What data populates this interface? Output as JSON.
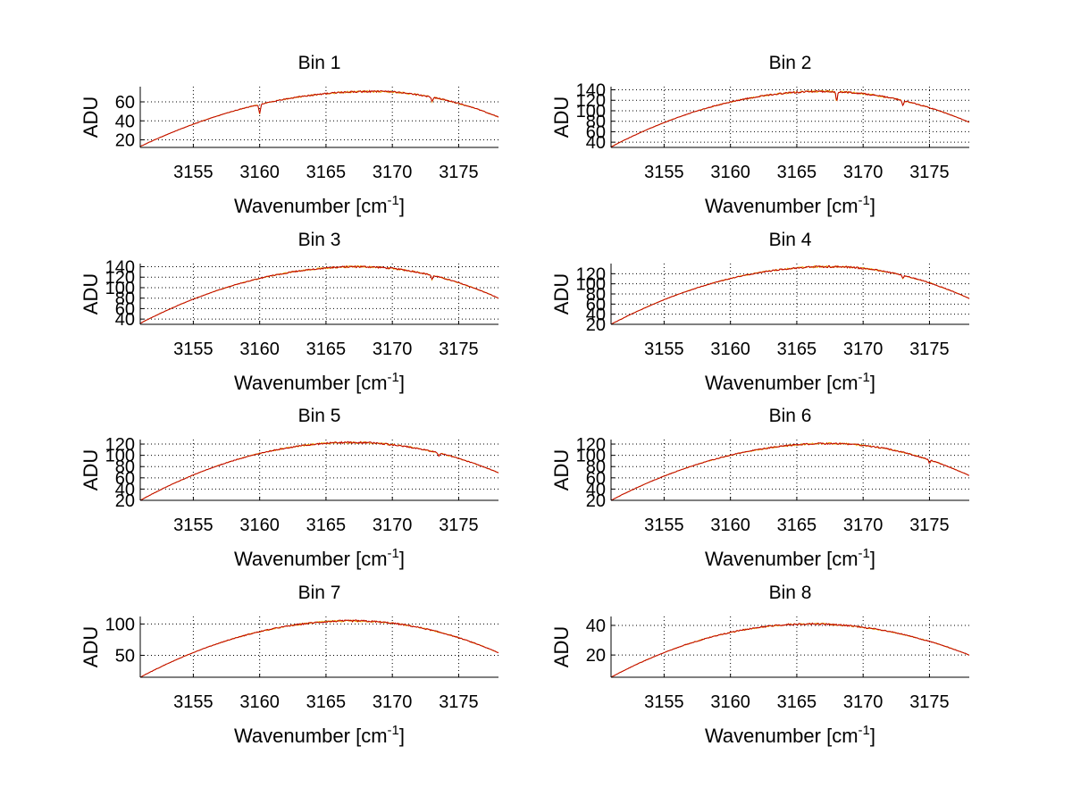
{
  "chart_data": [
    {
      "type": "line",
      "title": "Bin 1",
      "xlabel": "Wavenumber [cm",
      "xlabel_sup": "-1",
      "xlabel_end": "]",
      "ylabel": "ADU",
      "xlim": [
        3151,
        3178
      ],
      "ylim": [
        12,
        76
      ],
      "xticks": [
        3155,
        3160,
        3165,
        3170,
        3175
      ],
      "yticks": [
        20,
        40,
        60
      ],
      "grid": true,
      "peak": {
        "x": 3168.5,
        "y": 71
      },
      "endpoints": {
        "start": 13,
        "end": 44
      },
      "dips": [
        {
          "x": 3160,
          "depth": 10
        },
        {
          "x": 3173,
          "depth": 5
        }
      ],
      "series": [
        {
          "color": "#c00000"
        },
        {
          "color": "#e8b000"
        }
      ]
    },
    {
      "type": "line",
      "title": "Bin 2",
      "xlabel": "Wavenumber [cm",
      "xlabel_sup": "-1",
      "xlabel_end": "]",
      "ylabel": "ADU",
      "xlim": [
        3151,
        3178
      ],
      "ylim": [
        30,
        146
      ],
      "xticks": [
        3155,
        3160,
        3165,
        3170,
        3175
      ],
      "yticks": [
        40,
        60,
        80,
        100,
        120,
        140
      ],
      "grid": true,
      "peak": {
        "x": 3167,
        "y": 137
      },
      "endpoints": {
        "start": 31,
        "end": 78
      },
      "dips": [
        {
          "x": 3168,
          "depth": 18
        },
        {
          "x": 3173,
          "depth": 10
        }
      ],
      "series": [
        {
          "color": "#c00000"
        },
        {
          "color": "#e8b000"
        }
      ]
    },
    {
      "type": "line",
      "title": "Bin 3",
      "xlabel": "Wavenumber [cm",
      "xlabel_sup": "-1",
      "xlabel_end": "]",
      "ylabel": "ADU",
      "xlim": [
        3151,
        3178
      ],
      "ylim": [
        30,
        146
      ],
      "xticks": [
        3155,
        3160,
        3165,
        3170,
        3175
      ],
      "yticks": [
        40,
        60,
        80,
        100,
        120,
        140
      ],
      "grid": true,
      "peak": {
        "x": 3167.5,
        "y": 140
      },
      "endpoints": {
        "start": 32,
        "end": 80
      },
      "dips": [
        {
          "x": 3173,
          "depth": 8
        }
      ],
      "series": [
        {
          "color": "#c00000"
        },
        {
          "color": "#e8b000"
        }
      ]
    },
    {
      "type": "line",
      "title": "Bin 4",
      "xlabel": "Wavenumber [cm",
      "xlabel_sup": "-1",
      "xlabel_end": "]",
      "ylabel": "ADU",
      "xlim": [
        3151,
        3178
      ],
      "ylim": [
        20,
        140
      ],
      "xticks": [
        3155,
        3160,
        3165,
        3170,
        3175
      ],
      "yticks": [
        20,
        40,
        60,
        80,
        100,
        120
      ],
      "grid": true,
      "peak": {
        "x": 3167.5,
        "y": 134
      },
      "endpoints": {
        "start": 20,
        "end": 71
      },
      "dips": [
        {
          "x": 3173,
          "depth": 6
        }
      ],
      "series": [
        {
          "color": "#c00000"
        },
        {
          "color": "#e8b000"
        }
      ]
    },
    {
      "type": "line",
      "title": "Bin 5",
      "xlabel": "Wavenumber [cm",
      "xlabel_sup": "-1",
      "xlabel_end": "]",
      "ylabel": "ADU",
      "xlim": [
        3151,
        3178
      ],
      "ylim": [
        20,
        128
      ],
      "xticks": [
        3155,
        3160,
        3165,
        3170,
        3175
      ],
      "yticks": [
        20,
        40,
        60,
        80,
        100,
        120
      ],
      "grid": true,
      "peak": {
        "x": 3167,
        "y": 123
      },
      "endpoints": {
        "start": 20,
        "end": 69
      },
      "dips": [
        {
          "x": 3173.5,
          "depth": 5
        }
      ],
      "series": [
        {
          "color": "#c00000"
        },
        {
          "color": "#e8b000"
        }
      ]
    },
    {
      "type": "line",
      "title": "Bin 6",
      "xlabel": "Wavenumber [cm",
      "xlabel_sup": "-1",
      "xlabel_end": "]",
      "ylabel": "ADU",
      "xlim": [
        3151,
        3178
      ],
      "ylim": [
        20,
        128
      ],
      "xticks": [
        3155,
        3160,
        3165,
        3170,
        3175
      ],
      "yticks": [
        20,
        40,
        60,
        80,
        100,
        120
      ],
      "grid": true,
      "peak": {
        "x": 3167.5,
        "y": 121
      },
      "endpoints": {
        "start": 20,
        "end": 64
      },
      "dips": [
        {
          "x": 3175,
          "depth": 6
        }
      ],
      "series": [
        {
          "color": "#c00000"
        },
        {
          "color": "#e8b000"
        }
      ]
    },
    {
      "type": "line",
      "title": "Bin 7",
      "xlabel": "Wavenumber [cm",
      "xlabel_sup": "-1",
      "xlabel_end": "]",
      "ylabel": "ADU",
      "xlim": [
        3151,
        3178
      ],
      "ylim": [
        15,
        112
      ],
      "xticks": [
        3155,
        3160,
        3165,
        3170,
        3175
      ],
      "yticks": [
        50,
        100
      ],
      "grid": true,
      "peak": {
        "x": 3167,
        "y": 105
      },
      "endpoints": {
        "start": 15,
        "end": 54
      },
      "dips": [],
      "series": [
        {
          "color": "#c00000"
        },
        {
          "color": "#e8b000"
        }
      ]
    },
    {
      "type": "line",
      "title": "Bin 8",
      "xlabel": "Wavenumber [cm",
      "xlabel_sup": "-1",
      "xlabel_end": "]",
      "ylabel": "ADU",
      "xlim": [
        3151,
        3178
      ],
      "ylim": [
        5,
        46
      ],
      "xticks": [
        3155,
        3160,
        3165,
        3170,
        3175
      ],
      "yticks": [
        20,
        40
      ],
      "grid": true,
      "peak": {
        "x": 3166,
        "y": 41
      },
      "endpoints": {
        "start": 5,
        "end": 20
      },
      "dips": [],
      "series": [
        {
          "color": "#c00000"
        },
        {
          "color": "#e8b000"
        }
      ]
    }
  ]
}
